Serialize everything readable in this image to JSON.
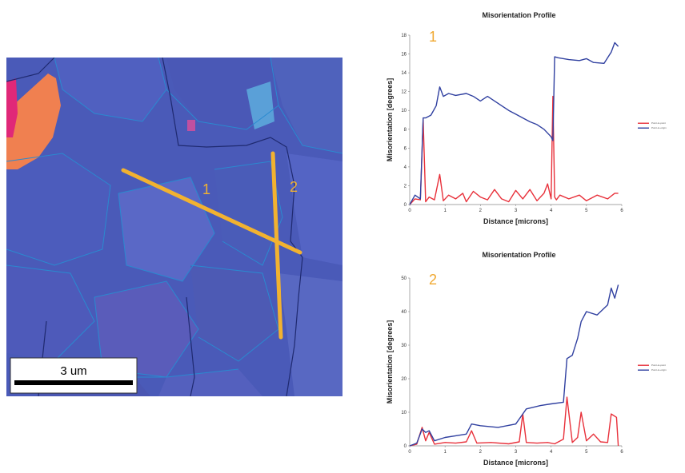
{
  "map": {
    "scale_label": "3 um",
    "line_labels": [
      "1",
      "2"
    ],
    "colors": {
      "base": "#4a5ab8",
      "line": "#f2b230",
      "label": "#f2b230",
      "orange_grain": "#f08050",
      "magenta_grain": "#e02878",
      "boundary": "#2a8ad0"
    }
  },
  "chart_data": [
    {
      "type": "line",
      "id_label": "1",
      "title": "Misorientation Profile",
      "xlabel": "Distance [microns]",
      "ylabel": "Misorientation [degrees]",
      "xlim": [
        0,
        6
      ],
      "ylim": [
        0,
        18
      ],
      "xticks": [
        0,
        1,
        2,
        3,
        4,
        5,
        6
      ],
      "yticks": [
        0,
        2,
        4,
        6,
        8,
        10,
        12,
        14,
        16,
        18
      ],
      "legend": [
        "Point-to-point",
        "Point-to-origin"
      ],
      "series": [
        {
          "name": "Point-to-point",
          "color": "#e8303a",
          "x": [
            0,
            0.15,
            0.3,
            0.38,
            0.45,
            0.55,
            0.7,
            0.85,
            0.95,
            1.1,
            1.3,
            1.5,
            1.6,
            1.8,
            2.0,
            2.2,
            2.4,
            2.6,
            2.8,
            3.0,
            3.2,
            3.4,
            3.6,
            3.8,
            3.9,
            4.0,
            4.05,
            4.1,
            4.15,
            4.25,
            4.5,
            4.8,
            5.0,
            5.3,
            5.6,
            5.8,
            5.9
          ],
          "y": [
            0,
            0.6,
            0.5,
            9,
            0.3,
            0.8,
            0.5,
            3.2,
            0.4,
            1.0,
            0.6,
            1.2,
            0.3,
            1.4,
            0.8,
            0.5,
            1.6,
            0.6,
            0.3,
            1.5,
            0.6,
            1.6,
            0.4,
            1.2,
            2.2,
            0.6,
            11.5,
            0.8,
            0.5,
            1.0,
            0.6,
            1.0,
            0.4,
            1.0,
            0.6,
            1.2,
            1.2
          ]
        },
        {
          "name": "Point-to-origin",
          "color": "#3040a0",
          "x": [
            0,
            0.15,
            0.3,
            0.38,
            0.45,
            0.6,
            0.75,
            0.85,
            0.95,
            1.1,
            1.3,
            1.6,
            1.8,
            2.0,
            2.2,
            2.4,
            2.6,
            2.8,
            3.0,
            3.2,
            3.4,
            3.6,
            3.8,
            4.0,
            4.05,
            4.1,
            4.2,
            4.5,
            4.8,
            5.0,
            5.2,
            5.5,
            5.7,
            5.8,
            5.9
          ],
          "y": [
            0,
            1,
            0.6,
            9.2,
            9.2,
            9.5,
            10.5,
            12.5,
            11.5,
            11.8,
            11.6,
            11.8,
            11.5,
            11.0,
            11.5,
            11.0,
            10.5,
            10.0,
            9.6,
            9.2,
            8.8,
            8.5,
            8.0,
            7.2,
            6.8,
            15.7,
            15.6,
            15.4,
            15.3,
            15.5,
            15.1,
            15.0,
            16.2,
            17.2,
            16.8
          ]
        }
      ]
    },
    {
      "type": "line",
      "id_label": "2",
      "title": "Misorientation Profile",
      "xlabel": "Distance [microns]",
      "ylabel": "Misorientation [degrees]",
      "xlim": [
        0,
        6
      ],
      "ylim": [
        0,
        50
      ],
      "xticks": [
        0,
        1,
        2,
        3,
        4,
        5,
        6
      ],
      "yticks": [
        0,
        10,
        20,
        30,
        40,
        50
      ],
      "legend": [
        "Point-to-point",
        "Point-to-origin"
      ],
      "series": [
        {
          "name": "Point-to-point",
          "color": "#e8303a",
          "x": [
            0,
            0.2,
            0.35,
            0.45,
            0.55,
            0.7,
            1.0,
            1.3,
            1.6,
            1.75,
            1.9,
            2.3,
            2.8,
            3.1,
            3.2,
            3.3,
            3.6,
            3.9,
            4.1,
            4.35,
            4.45,
            4.6,
            4.75,
            4.85,
            5.0,
            5.2,
            5.4,
            5.6,
            5.7,
            5.85,
            5.9
          ],
          "y": [
            0,
            0.5,
            5.5,
            1.5,
            4,
            0.5,
            1,
            0.8,
            1.2,
            4.5,
            0.8,
            1.0,
            0.6,
            1.2,
            9.5,
            1.0,
            0.8,
            1.0,
            0.6,
            2.0,
            14.5,
            1.0,
            2.5,
            10,
            1.5,
            3.5,
            1.2,
            1.0,
            9.5,
            8.5,
            0
          ]
        },
        {
          "name": "Point-to-origin",
          "color": "#3040a0",
          "x": [
            0,
            0.2,
            0.35,
            0.45,
            0.55,
            0.7,
            1.0,
            1.3,
            1.6,
            1.75,
            2.0,
            2.5,
            3.0,
            3.2,
            3.3,
            3.7,
            4.0,
            4.35,
            4.45,
            4.6,
            4.75,
            4.85,
            5.0,
            5.3,
            5.6,
            5.7,
            5.8,
            5.9
          ],
          "y": [
            0,
            0.8,
            5,
            4,
            4.5,
            1.5,
            2.5,
            3.0,
            3.5,
            6.5,
            6.0,
            5.5,
            6.5,
            9.5,
            11,
            12,
            12.5,
            13,
            26,
            27,
            32,
            37,
            40,
            39,
            42,
            47,
            44,
            48
          ]
        }
      ]
    }
  ]
}
